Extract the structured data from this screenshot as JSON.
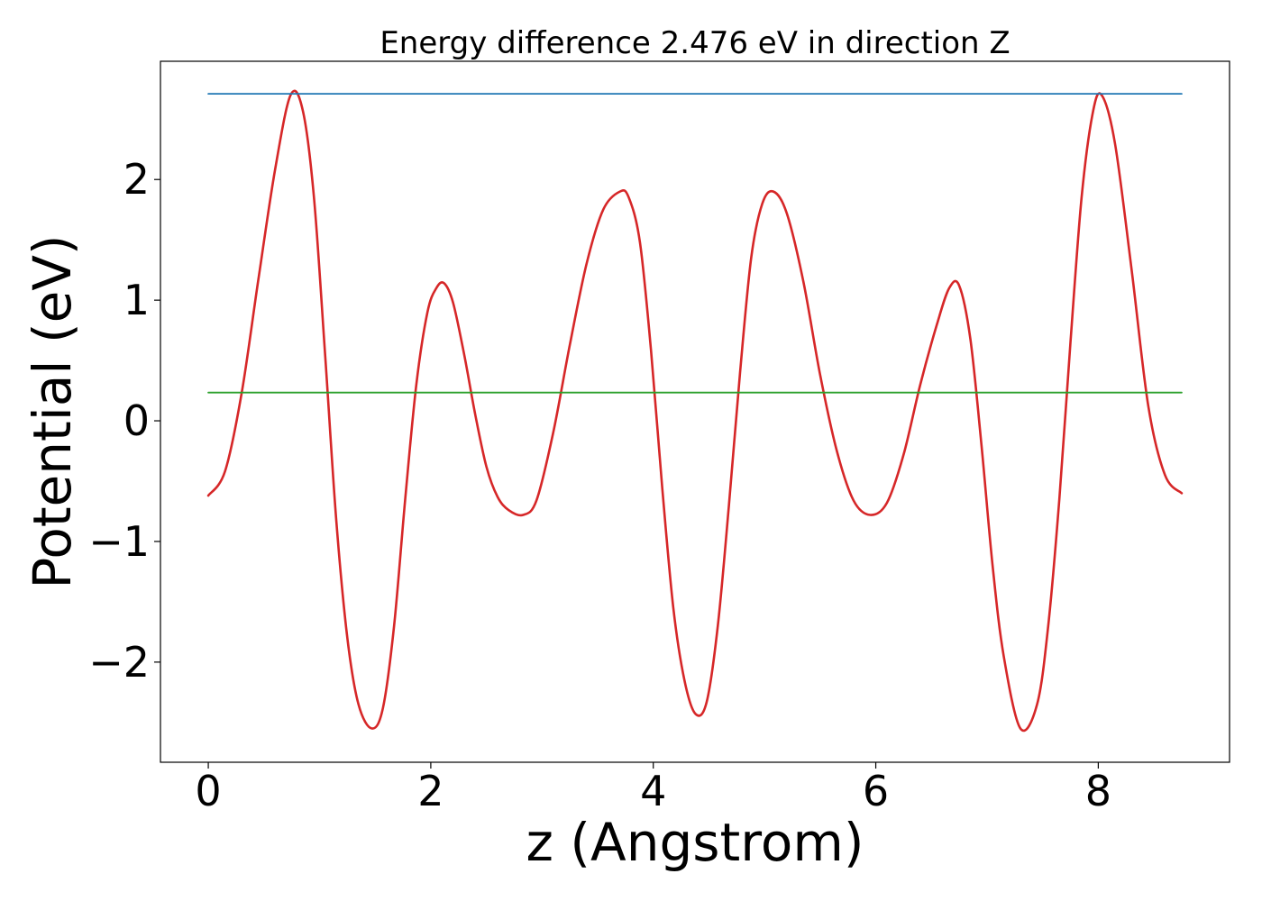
{
  "chart_data": {
    "type": "line",
    "title": "Energy difference 2.476 eV in direction Z",
    "xlabel": "z (Angstrom)",
    "ylabel": "Potential (eV)",
    "xlim": [
      -0.43,
      9.18
    ],
    "ylim": [
      -2.83,
      2.98
    ],
    "xticks": [
      0,
      2,
      4,
      6,
      8
    ],
    "xtick_labels": [
      "0",
      "2",
      "4",
      "6",
      "8"
    ],
    "yticks": [
      -2,
      -1,
      0,
      1,
      2
    ],
    "ytick_labels": [
      "−2",
      "−1",
      "0",
      "1",
      "2"
    ],
    "grid": false,
    "legend": "none",
    "series": [
      {
        "color": "#d62728",
        "x": [
          0.0,
          0.15,
          0.3,
          0.45,
          0.6,
          0.74,
          0.85,
          0.95,
          1.05,
          1.15,
          1.25,
          1.35,
          1.47,
          1.57,
          1.67,
          1.77,
          1.87,
          1.97,
          2.05,
          2.12,
          2.2,
          2.3,
          2.4,
          2.5,
          2.6,
          2.7,
          2.83,
          2.95,
          3.1,
          3.25,
          3.4,
          3.55,
          3.7,
          3.78,
          3.88,
          3.98,
          4.08,
          4.18,
          4.28,
          4.38,
          4.48,
          4.58,
          4.68,
          4.78,
          4.88,
          4.98,
          5.08,
          5.2,
          5.35,
          5.5,
          5.65,
          5.8,
          5.95,
          6.1,
          6.25,
          6.4,
          6.55,
          6.66,
          6.75,
          6.85,
          6.95,
          7.05,
          7.15,
          7.3,
          7.45,
          7.55,
          7.65,
          7.75,
          7.85,
          7.95,
          8.03,
          8.15,
          8.3,
          8.45,
          8.6,
          8.75
        ],
        "values": [
          -0.62,
          -0.42,
          0.23,
          1.17,
          2.08,
          2.7,
          2.57,
          1.85,
          0.55,
          -0.82,
          -1.8,
          -2.35,
          -2.55,
          -2.38,
          -1.7,
          -0.65,
          0.3,
          0.9,
          1.1,
          1.14,
          0.98,
          0.55,
          0.05,
          -0.38,
          -0.63,
          -0.74,
          -0.78,
          -0.66,
          -0.1,
          0.63,
          1.3,
          1.75,
          1.9,
          1.85,
          1.48,
          0.58,
          -0.55,
          -1.55,
          -2.15,
          -2.43,
          -2.33,
          -1.7,
          -0.7,
          0.4,
          1.35,
          1.8,
          1.9,
          1.72,
          1.15,
          0.38,
          -0.25,
          -0.66,
          -0.78,
          -0.68,
          -0.28,
          0.3,
          0.8,
          1.1,
          1.12,
          0.68,
          -0.2,
          -1.2,
          -1.95,
          -2.55,
          -2.35,
          -1.7,
          -0.65,
          0.65,
          1.85,
          2.55,
          2.7,
          2.3,
          1.25,
          0.12,
          -0.45,
          -0.6
        ]
      },
      {
        "color": "#1f77b4",
        "x": [
          0.0,
          8.75
        ],
        "values": [
          2.71,
          2.71
        ]
      },
      {
        "color": "#2ca02c",
        "x": [
          0.0,
          8.75
        ],
        "values": [
          0.234,
          0.234
        ]
      }
    ]
  }
}
